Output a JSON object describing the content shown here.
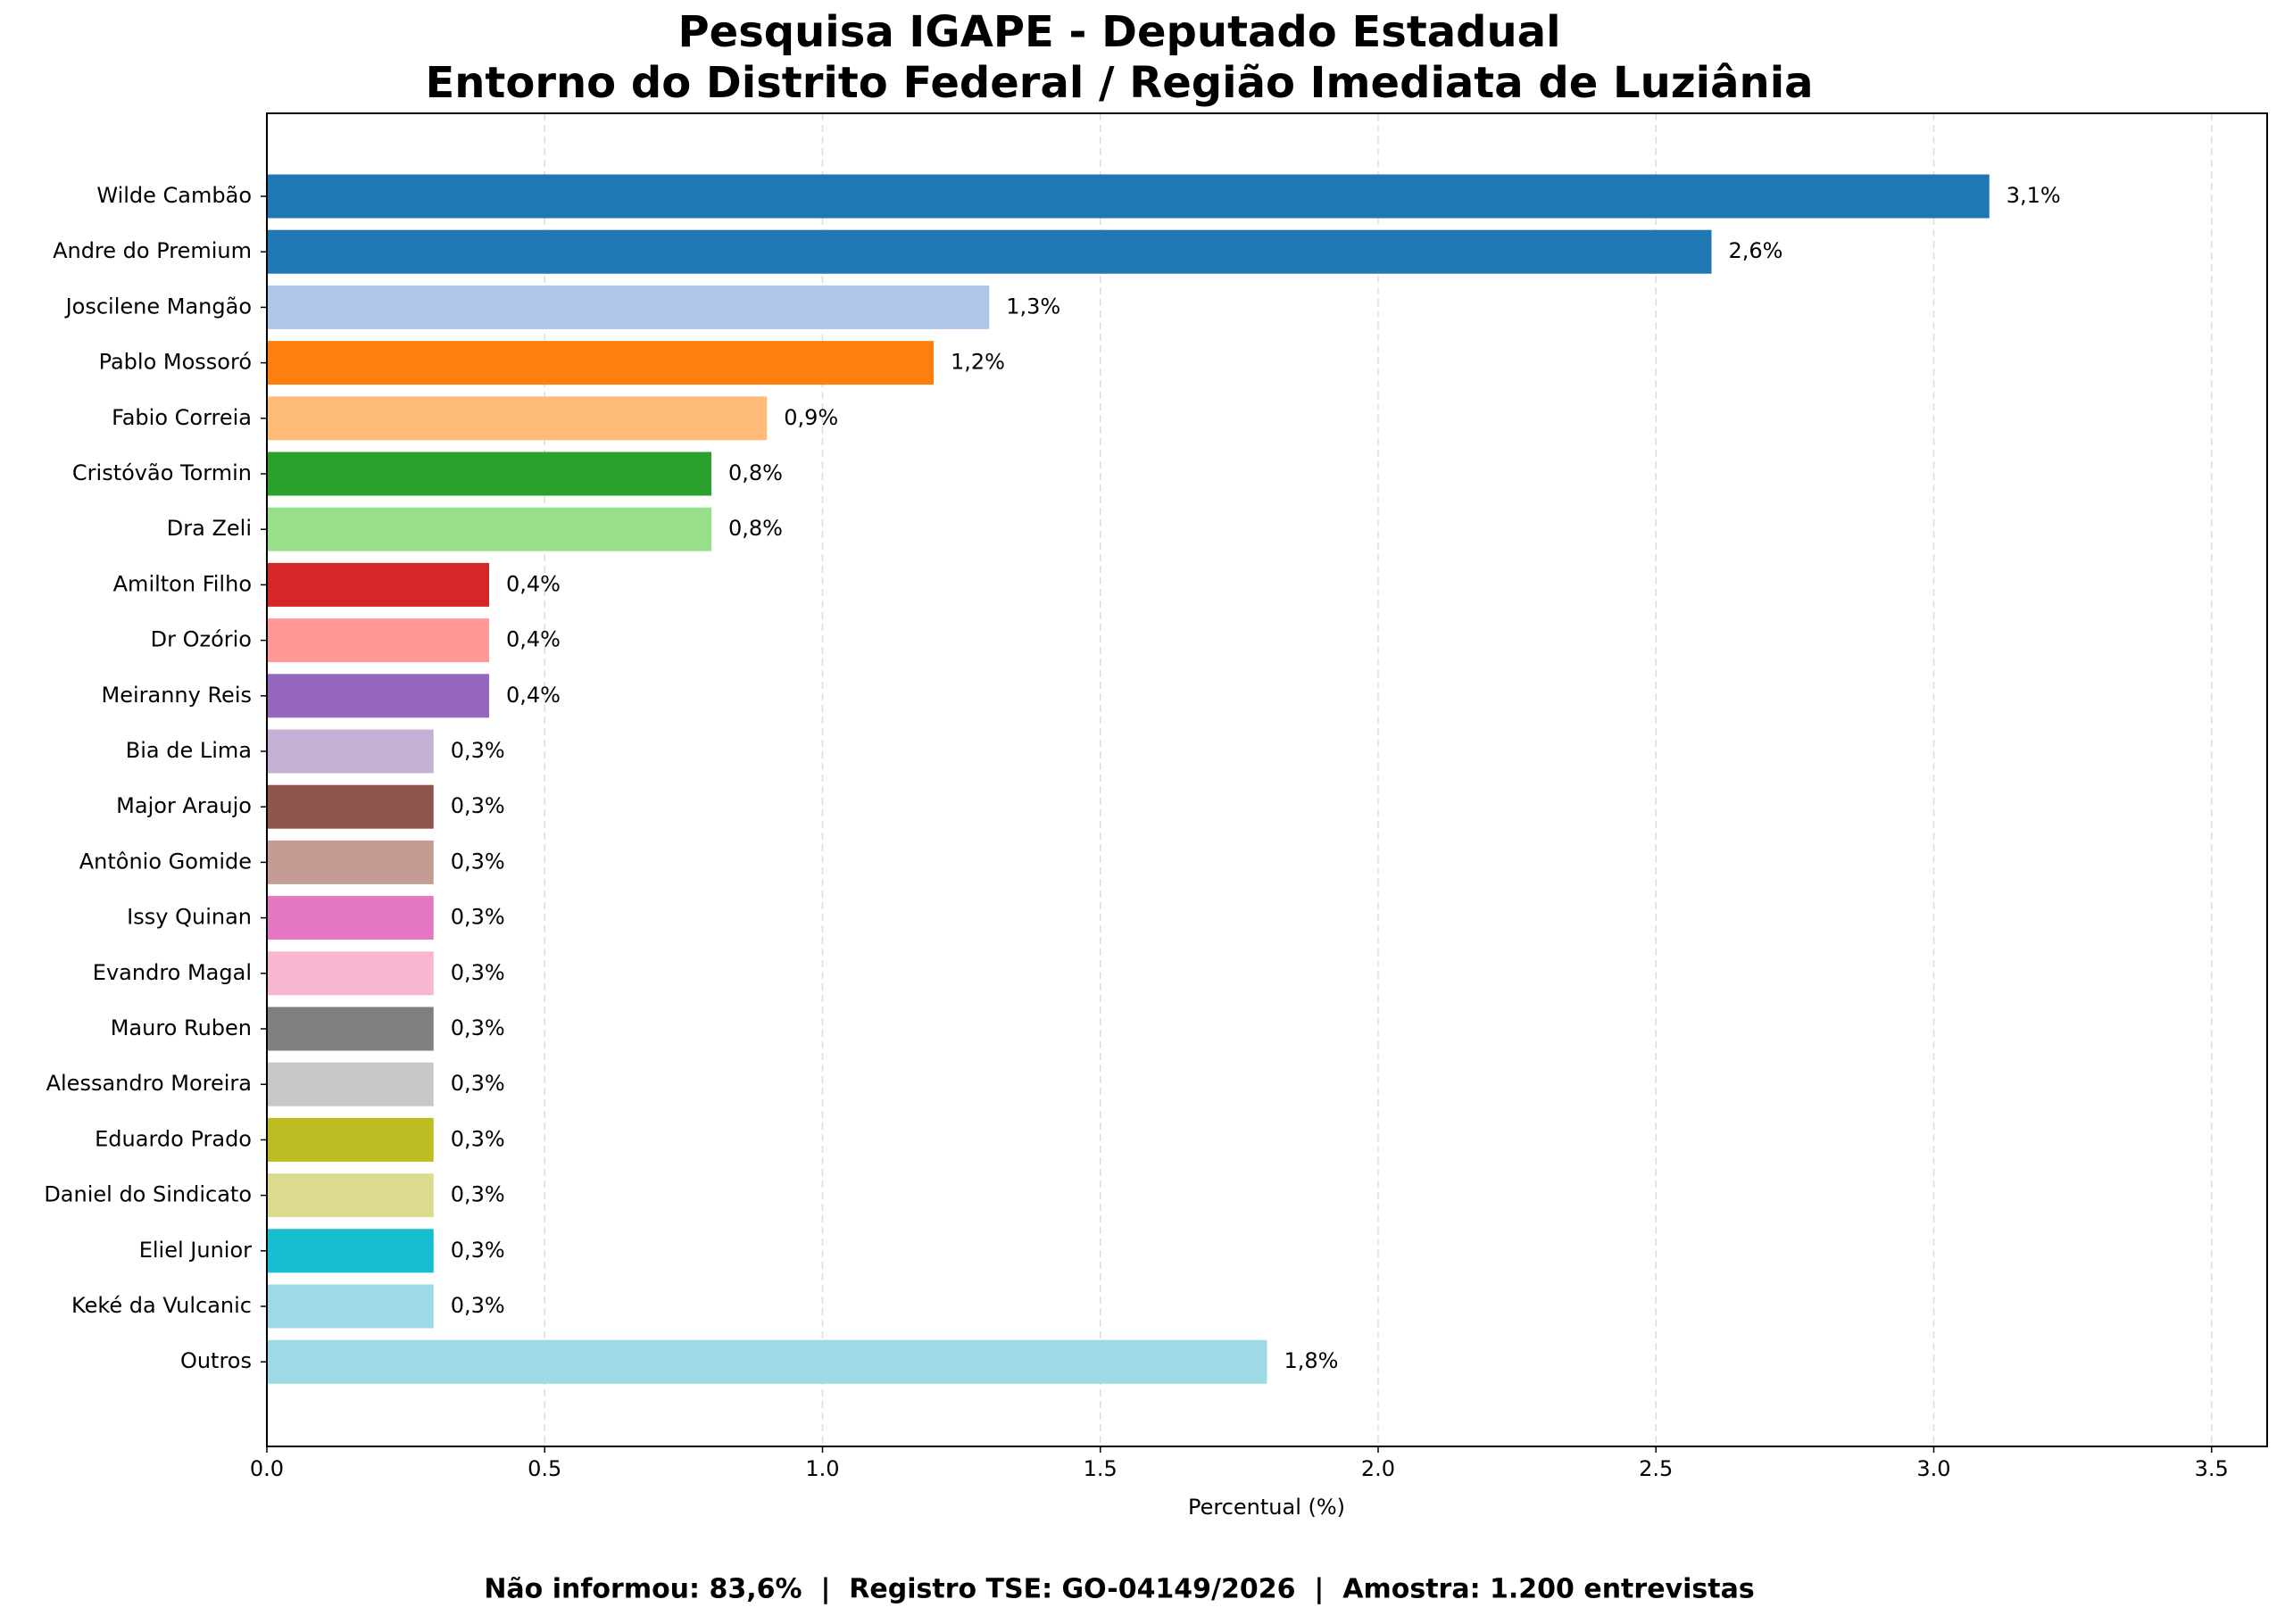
{
  "chart_data": {
    "type": "barh",
    "title": [
      "Pesquisa IGAPE - Deputado Estadual",
      "Entorno do Distrito Federal / Região Imediata de Luziânia"
    ],
    "categories": [
      "Wilde Cambão",
      "Andre do Premium",
      "Joscilene Mangão",
      "Pablo Mossoró",
      "Fabio Correia",
      "Cristóvão Tormin",
      "Dra Zeli",
      "Amilton Filho",
      "Dr Ozório",
      "Meiranny Reis",
      "Bia de Lima",
      "Major Araujo",
      "Antônio Gomide",
      "Issy Quinan",
      "Evandro Magal",
      "Mauro Ruben",
      "Alessandro Moreira",
      "Eduardo Prado",
      "Daniel do Sindicato",
      "Eliel Junior",
      "Keké da Vulcanic",
      "Outros"
    ],
    "values": [
      3.1,
      2.6,
      1.3,
      1.2,
      0.9,
      0.8,
      0.8,
      0.4,
      0.4,
      0.4,
      0.3,
      0.3,
      0.3,
      0.3,
      0.3,
      0.3,
      0.3,
      0.3,
      0.3,
      0.3,
      0.3,
      1.8
    ],
    "value_labels": [
      "3,1%",
      "2,6%",
      "1,3%",
      "1,2%",
      "0,9%",
      "0,8%",
      "0,8%",
      "0,4%",
      "0,4%",
      "0,4%",
      "0,3%",
      "0,3%",
      "0,3%",
      "0,3%",
      "0,3%",
      "0,3%",
      "0,3%",
      "0,3%",
      "0,3%",
      "0,3%",
      "0,3%",
      "1,8%"
    ],
    "colors": [
      "#1f77b4",
      "#1f77b4",
      "#aec7e8",
      "#ff7f0e",
      "#ffbb78",
      "#2ca02c",
      "#98df8a",
      "#d62728",
      "#ff9896",
      "#9467bd",
      "#c5b0d5",
      "#8c564b",
      "#c49c94",
      "#e377c2",
      "#f7b6d2",
      "#7f7f7f",
      "#c7c7c7",
      "#bcbd22",
      "#dbdb8d",
      "#17becf",
      "#9edae5",
      "#9edae5"
    ],
    "xlabel": "Percentual (%)",
    "xlim": [
      0,
      3.6
    ],
    "xticks": [
      {
        "value": 0,
        "label": "0.0"
      },
      0.5,
      {
        "value": 1,
        "label": "1.0"
      },
      1.5,
      {
        "value": 2,
        "label": "2.0"
      },
      2.5,
      {
        "value": 3,
        "label": "3.0"
      },
      3.5
    ],
    "grid": true,
    "footer": "Não informou: 83,6%  |  Registro TSE: GO-04149/2026  |  Amostra: 1.200 entrevistas"
  }
}
